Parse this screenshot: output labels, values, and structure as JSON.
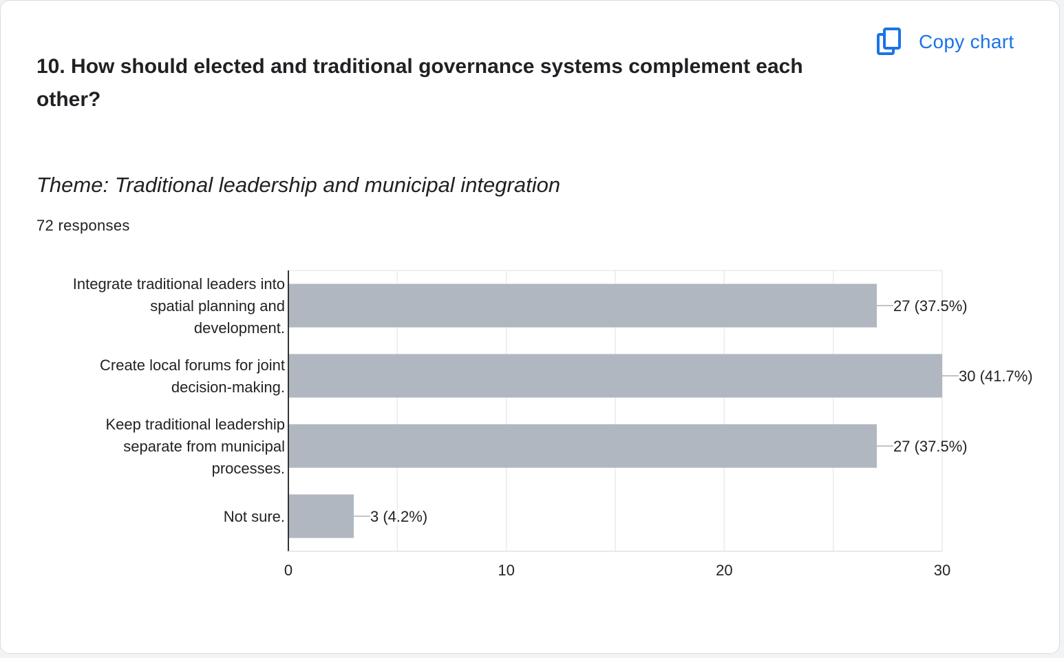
{
  "header": {
    "copy_chart_label": "Copy chart",
    "copy_icon": "copy-icon",
    "accent_color": "#1a73e8"
  },
  "question": {
    "title": "10. How should elected and traditional governance systems complement each other?",
    "theme": "Theme: Traditional leadership and municipal integration",
    "responses": "72 responses"
  },
  "chart_data": {
    "type": "bar",
    "orientation": "horizontal",
    "title": "",
    "xlabel": "",
    "ylabel": "",
    "categories": [
      [
        "Integrate traditional leaders into",
        "spatial planning and",
        "development."
      ],
      [
        "Create local forums for joint",
        "decision-making."
      ],
      [
        "Keep traditional leadership",
        "separate from municipal",
        "processes."
      ],
      [
        "Not sure."
      ]
    ],
    "values": [
      27,
      30,
      27,
      3
    ],
    "data_labels": [
      "27 (37.5%)",
      "30 (41.7%)",
      "27 (37.5%)",
      "3 (4.2%)"
    ],
    "xlim": [
      0,
      30
    ],
    "ticks": [
      0,
      10,
      20,
      30
    ],
    "tick_labels": [
      "0",
      "10",
      "20",
      "30"
    ],
    "grid": true,
    "bar_color": "#b0b7c0",
    "grid_color": "#ebebeb",
    "axis_color": "#333333"
  }
}
